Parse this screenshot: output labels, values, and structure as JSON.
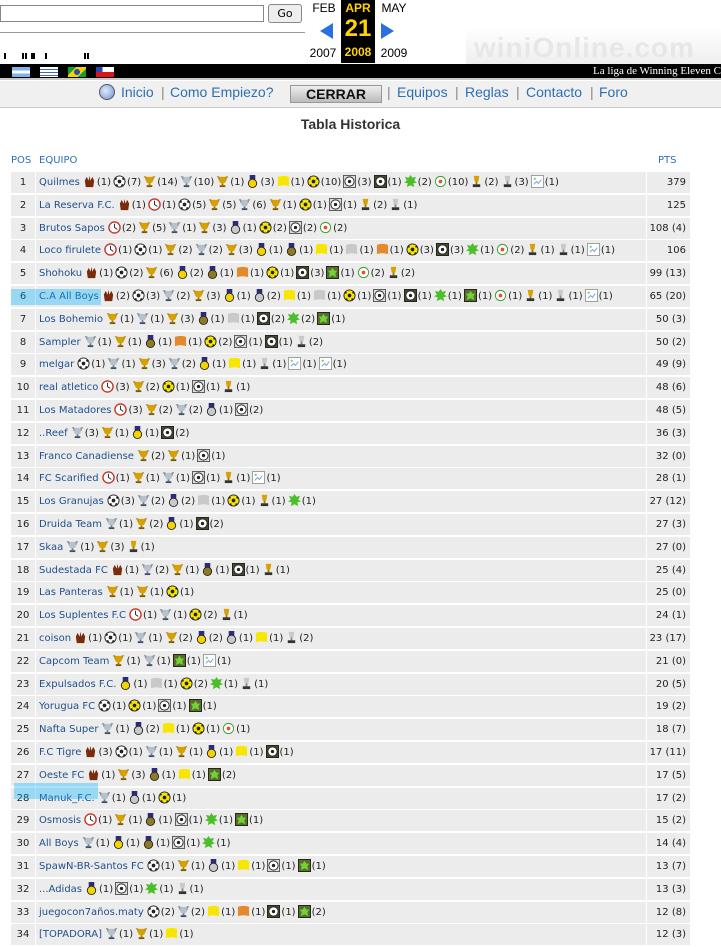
{
  "topbar": {
    "search_value": "",
    "go_label": "Go",
    "calendar": {
      "prev_month": "FEB",
      "prev_year": "2007",
      "active_month": "APR",
      "active_day": "21",
      "active_year": "2008",
      "next_month": "MAY",
      "next_year": "2009"
    },
    "logo_text": "winiOnline.com",
    "accent_color": "#ffd200"
  },
  "strip": {
    "tagline": "La liga de Winning Eleven C",
    "flags": [
      "argentina-flag",
      "uruguay-flag",
      "brazil-flag",
      "chile-flag"
    ]
  },
  "nav": {
    "inicio": "Inicio",
    "como_empiezo": "Como Empiezo?",
    "cerrar": "CERRAR",
    "equipos": "Equipos",
    "reglas": "Reglas",
    "contacto": "Contacto",
    "foro": "Foro",
    "link_color": "#2c6fb5"
  },
  "page": {
    "title": "Tabla Historica",
    "col_pos": "POS",
    "col_team": "EQUIPO",
    "col_pts": "PTS"
  },
  "icons": {
    "g": "glove-award-icon",
    "b": "soccer-ball-icon",
    "c": "clock-award-icon",
    "t": "gold-trophy-icon",
    "s": "silver-trophy-icon",
    "m": "gold-medal-icon",
    "d": "silver-medal-icon",
    "n": "bronze-medal-icon",
    "y": "yellow-flag-icon",
    "w": "gray-flag-icon",
    "o": "orange-flag-icon",
    "k": "yellow-ball-icon",
    "a": "gray-ball-icon",
    "q": "dark-ball-icon",
    "h": "green-badge-icon",
    "r": "green-shield-icon",
    "l": "small-green-ball-icon",
    "u": "gold-cup-icon",
    "v": "silver-cup-icon",
    "x": "broken-image-icon"
  },
  "rows": [
    {
      "pos": "1",
      "team": "Quilmes",
      "pts": "379 (27)",
      "awards": [
        [
          "g",
          "(1)"
        ],
        [
          "b",
          "(7)"
        ],
        [
          "t",
          "(14)"
        ],
        [
          "s",
          "(10)"
        ],
        [
          "t",
          "(1)"
        ],
        [
          "m",
          "(3)"
        ],
        [
          "y",
          "(1)"
        ],
        [
          "k",
          "(10)"
        ],
        [
          "a",
          "(3)"
        ],
        [
          "q",
          "(1)"
        ],
        [
          "h",
          "(2)"
        ],
        [
          "l",
          "(10)"
        ],
        [
          "u",
          "(2)"
        ],
        [
          "v",
          "(3)"
        ],
        [
          "x",
          "(1)"
        ]
      ]
    },
    {
      "pos": "2",
      "team": "La Reserva F.C.",
      "pts": "125 (12)",
      "awards": [
        [
          "g",
          "(1)"
        ],
        [
          "c",
          "(1)"
        ],
        [
          "b",
          "(5)"
        ],
        [
          "t",
          "(5)"
        ],
        [
          "s",
          "(6)"
        ],
        [
          "t",
          "(1)"
        ],
        [
          "k",
          "(1)"
        ],
        [
          "a",
          "(1)"
        ],
        [
          "u",
          "(2)"
        ],
        [
          "v",
          "(1)"
        ]
      ]
    },
    {
      "pos": "3",
      "team": "Brutos Sapos",
      "pts": "108 (4)",
      "awards": [
        [
          "c",
          "(2)"
        ],
        [
          "t",
          "(5)"
        ],
        [
          "s",
          "(1)"
        ],
        [
          "t",
          "(3)"
        ],
        [
          "d",
          "(1)"
        ],
        [
          "k",
          "(2)"
        ],
        [
          "a",
          "(2)"
        ],
        [
          "l",
          "(2)"
        ]
      ]
    },
    {
      "pos": "4",
      "team": "Loco firulete",
      "pts": "106 (13)",
      "awards": [
        [
          "c",
          "(1)"
        ],
        [
          "b",
          "(1)"
        ],
        [
          "t",
          "(2)"
        ],
        [
          "s",
          "(2)"
        ],
        [
          "t",
          "(3)"
        ],
        [
          "m",
          "(1)"
        ],
        [
          "n",
          "(1)"
        ],
        [
          "y",
          "(1)"
        ],
        [
          "w",
          "(1)"
        ],
        [
          "o",
          "(1)"
        ],
        [
          "k",
          "(3)"
        ],
        [
          "q",
          "(3)"
        ],
        [
          "h",
          "(1)"
        ],
        [
          "l",
          "(2)"
        ],
        [
          "u",
          "(1)"
        ],
        [
          "v",
          "(1)"
        ],
        [
          "x",
          "(1)"
        ]
      ]
    },
    {
      "pos": "5",
      "team": "Shohoku",
      "pts": "99 (13)",
      "awards": [
        [
          "g",
          "(1)"
        ],
        [
          "b",
          "(2)"
        ],
        [
          "t",
          "(6)"
        ],
        [
          "m",
          "(2)"
        ],
        [
          "n",
          "(1)"
        ],
        [
          "o",
          "(1)"
        ],
        [
          "k",
          "(1)"
        ],
        [
          "q",
          "(3)"
        ],
        [
          "r",
          "(1)"
        ],
        [
          "l",
          "(2)"
        ],
        [
          "u",
          "(2)"
        ]
      ]
    },
    {
      "pos": "6",
      "team": "C.A All Boys",
      "pts": "65 (20)",
      "awards": [
        [
          "g",
          "(2)"
        ],
        [
          "b",
          "(3)"
        ],
        [
          "s",
          "(2)"
        ],
        [
          "t",
          "(3)"
        ],
        [
          "m",
          "(1)"
        ],
        [
          "d",
          "(2)"
        ],
        [
          "y",
          "(1)"
        ],
        [
          "w",
          "(1)"
        ],
        [
          "k",
          "(1)"
        ],
        [
          "a",
          "(1)"
        ],
        [
          "q",
          "(1)"
        ],
        [
          "h",
          "(1)"
        ],
        [
          "r",
          "(1)"
        ],
        [
          "l",
          "(1)"
        ],
        [
          "u",
          "(1)"
        ],
        [
          "v",
          "(1)"
        ],
        [
          "x",
          "(1)"
        ]
      ]
    },
    {
      "pos": "7",
      "team": "Los Bohemio",
      "pts": "50 (3)",
      "awards": [
        [
          "t",
          "(1)"
        ],
        [
          "s",
          "(1)"
        ],
        [
          "t",
          "(3)"
        ],
        [
          "n",
          "(1)"
        ],
        [
          "w",
          "(1)"
        ],
        [
          "q",
          "(2)"
        ],
        [
          "h",
          "(2)"
        ],
        [
          "r",
          "(1)"
        ]
      ]
    },
    {
      "pos": "8",
      "team": "Sampler",
      "pts": "50 (2)",
      "awards": [
        [
          "s",
          "(1)"
        ],
        [
          "t",
          "(1)"
        ],
        [
          "n",
          "(1)"
        ],
        [
          "o",
          "(1)"
        ],
        [
          "k",
          "(2)"
        ],
        [
          "a",
          "(1)"
        ],
        [
          "q",
          "(1)"
        ],
        [
          "v",
          "(2)"
        ]
      ]
    },
    {
      "pos": "9",
      "team": "melgar",
      "pts": "49 (9)",
      "awards": [
        [
          "b",
          "(1)"
        ],
        [
          "s",
          "(1)"
        ],
        [
          "t",
          "(3)"
        ],
        [
          "s",
          "(2)"
        ],
        [
          "m",
          "(1)"
        ],
        [
          "y",
          "(1)"
        ],
        [
          "v",
          "(1)"
        ],
        [
          "x",
          "(1)"
        ],
        [
          "x",
          "(1)"
        ]
      ]
    },
    {
      "pos": "10",
      "team": "real atletico",
      "pts": "48 (6)",
      "awards": [
        [
          "c",
          "(3)"
        ],
        [
          "t",
          "(2)"
        ],
        [
          "k",
          "(1)"
        ],
        [
          "a",
          "(1)"
        ],
        [
          "u",
          "(1)"
        ]
      ]
    },
    {
      "pos": "11",
      "team": "Los Matadores",
      "pts": "48 (5)",
      "awards": [
        [
          "c",
          "(3)"
        ],
        [
          "t",
          "(2)"
        ],
        [
          "s",
          "(2)"
        ],
        [
          "d",
          "(1)"
        ],
        [
          "a",
          "(2)"
        ]
      ]
    },
    {
      "pos": "12",
      "team": "..Reef",
      "pts": "36 (3)",
      "awards": [
        [
          "s",
          "(3)"
        ],
        [
          "t",
          "(1)"
        ],
        [
          "m",
          "(1)"
        ],
        [
          "q",
          "(2)"
        ]
      ]
    },
    {
      "pos": "13",
      "team": "Franco Canadiense",
      "pts": "32 (0)",
      "awards": [
        [
          "t",
          "(2)"
        ],
        [
          "t",
          "(1)"
        ],
        [
          "a",
          "(1)"
        ]
      ]
    },
    {
      "pos": "14",
      "team": "FC Scarified",
      "pts": "28 (1)",
      "awards": [
        [
          "c",
          "(1)"
        ],
        [
          "t",
          "(1)"
        ],
        [
          "s",
          "(1)"
        ],
        [
          "a",
          "(1)"
        ],
        [
          "u",
          "(1)"
        ],
        [
          "x",
          "(1)"
        ]
      ]
    },
    {
      "pos": "15",
      "team": "Los Granujas",
      "pts": "27 (12)",
      "awards": [
        [
          "b",
          "(3)"
        ],
        [
          "s",
          "(2)"
        ],
        [
          "d",
          "(2)"
        ],
        [
          "w",
          "(1)"
        ],
        [
          "k",
          "(1)"
        ],
        [
          "u",
          "(1)"
        ],
        [
          "h",
          "(1)"
        ]
      ]
    },
    {
      "pos": "16",
      "team": "Druida Team",
      "pts": "27 (3)",
      "awards": [
        [
          "s",
          "(1)"
        ],
        [
          "t",
          "(2)"
        ],
        [
          "m",
          "(1)"
        ],
        [
          "q",
          "(2)"
        ]
      ]
    },
    {
      "pos": "17",
      "team": "Skaa",
      "pts": "27 (0)",
      "awards": [
        [
          "s",
          "(1)"
        ],
        [
          "t",
          "(3)"
        ],
        [
          "u",
          "(1)"
        ]
      ]
    },
    {
      "pos": "18",
      "team": "Sudestada FC",
      "pts": "25 (4)",
      "awards": [
        [
          "g",
          "(1)"
        ],
        [
          "s",
          "(2)"
        ],
        [
          "t",
          "(1)"
        ],
        [
          "n",
          "(1)"
        ],
        [
          "q",
          "(1)"
        ],
        [
          "u",
          "(1)"
        ]
      ]
    },
    {
      "pos": "19",
      "team": "Las Panteras",
      "pts": "25 (0)",
      "awards": [
        [
          "t",
          "(1)"
        ],
        [
          "t",
          "(1)"
        ],
        [
          "k",
          "(1)"
        ]
      ]
    },
    {
      "pos": "20",
      "team": "Los Suplentes F.C",
      "pts": "24 (1)",
      "awards": [
        [
          "c",
          "(1)"
        ],
        [
          "s",
          "(1)"
        ],
        [
          "k",
          "(2)"
        ],
        [
          "u",
          "(1)"
        ]
      ]
    },
    {
      "pos": "21",
      "team": "coison",
      "pts": "23 (17)",
      "awards": [
        [
          "g",
          "(1)"
        ],
        [
          "b",
          "(1)"
        ],
        [
          "s",
          "(1)"
        ],
        [
          "t",
          "(2)"
        ],
        [
          "m",
          "(2)"
        ],
        [
          "d",
          "(1)"
        ],
        [
          "y",
          "(1)"
        ],
        [
          "v",
          "(2)"
        ]
      ]
    },
    {
      "pos": "22",
      "team": "Capcom Team",
      "pts": "21 (0)",
      "awards": [
        [
          "t",
          "(1)"
        ],
        [
          "s",
          "(1)"
        ],
        [
          "r",
          "(1)"
        ],
        [
          "x",
          "(1)"
        ]
      ]
    },
    {
      "pos": "23",
      "team": "Expulsados F.C.",
      "pts": "20 (5)",
      "awards": [
        [
          "m",
          "(1)"
        ],
        [
          "w",
          "(1)"
        ],
        [
          "k",
          "(2)"
        ],
        [
          "h",
          "(1)"
        ],
        [
          "v",
          "(1)"
        ]
      ]
    },
    {
      "pos": "24",
      "team": "Yorugua FC",
      "pts": "19 (2)",
      "awards": [
        [
          "b",
          "(1)"
        ],
        [
          "k",
          "(1)"
        ],
        [
          "a",
          "(1)"
        ],
        [
          "r",
          "(1)"
        ]
      ]
    },
    {
      "pos": "25",
      "team": "Nafta Super",
      "pts": "18 (7)",
      "awards": [
        [
          "s",
          "(1)"
        ],
        [
          "d",
          "(2)"
        ],
        [
          "y",
          "(1)"
        ],
        [
          "k",
          "(1)"
        ],
        [
          "l",
          "(1)"
        ]
      ]
    },
    {
      "pos": "26",
      "team": "F.C Tigre",
      "pts": "17 (11)",
      "awards": [
        [
          "g",
          "(3)"
        ],
        [
          "b",
          "(1)"
        ],
        [
          "s",
          "(1)"
        ],
        [
          "t",
          "(1)"
        ],
        [
          "m",
          "(1)"
        ],
        [
          "y",
          "(1)"
        ],
        [
          "q",
          "(1)"
        ]
      ]
    },
    {
      "pos": "27",
      "team": "Oeste FC",
      "pts": "17 (5)",
      "awards": [
        [
          "g",
          "(1)"
        ],
        [
          "t",
          "(3)"
        ],
        [
          "n",
          "(1)"
        ],
        [
          "y",
          "(1)"
        ],
        [
          "r",
          "(2)"
        ]
      ]
    },
    {
      "pos": "28",
      "team": "Manuk_F.C.",
      "pts": "17 (2)",
      "awards": [
        [
          "s",
          "(1)"
        ],
        [
          "d",
          "(1)"
        ],
        [
          "k",
          "(1)"
        ]
      ]
    },
    {
      "pos": "29",
      "team": "Osmosis",
      "pts": "15 (2)",
      "awards": [
        [
          "c",
          "(1)"
        ],
        [
          "t",
          "(1)"
        ],
        [
          "n",
          "(1)"
        ],
        [
          "a",
          "(1)"
        ],
        [
          "h",
          "(1)"
        ],
        [
          "r",
          "(1)"
        ]
      ]
    },
    {
      "pos": "30",
      "team": "All Boys",
      "pts": "14 (4)",
      "awards": [
        [
          "s",
          "(1)"
        ],
        [
          "m",
          "(1)"
        ],
        [
          "n",
          "(1)"
        ],
        [
          "a",
          "(1)"
        ],
        [
          "h",
          "(1)"
        ]
      ]
    },
    {
      "pos": "31",
      "team": "SpawN-BR-Santos FC",
      "pts": "13 (7)",
      "awards": [
        [
          "b",
          "(1)"
        ],
        [
          "t",
          "(1)"
        ],
        [
          "d",
          "(1)"
        ],
        [
          "y",
          "(1)"
        ],
        [
          "a",
          "(1)"
        ],
        [
          "r",
          "(1)"
        ]
      ]
    },
    {
      "pos": "32",
      "team": "...Adidas",
      "pts": "13 (3)",
      "awards": [
        [
          "m",
          "(1)"
        ],
        [
          "a",
          "(1)"
        ],
        [
          "h",
          "(1)"
        ],
        [
          "v",
          "(1)"
        ]
      ]
    },
    {
      "pos": "33",
      "team": "juegocon7años.maty",
      "pts": "12 (8)",
      "awards": [
        [
          "b",
          "(2)"
        ],
        [
          "s",
          "(2)"
        ],
        [
          "y",
          "(1)"
        ],
        [
          "o",
          "(1)"
        ],
        [
          "q",
          "(1)"
        ],
        [
          "r",
          "(2)"
        ]
      ]
    },
    {
      "pos": "34",
      "team": "[TOPADORA]",
      "pts": "12 (3)",
      "awards": [
        [
          "s",
          "(1)"
        ],
        [
          "t",
          "(1)"
        ],
        [
          "y",
          "(1)"
        ]
      ]
    }
  ]
}
